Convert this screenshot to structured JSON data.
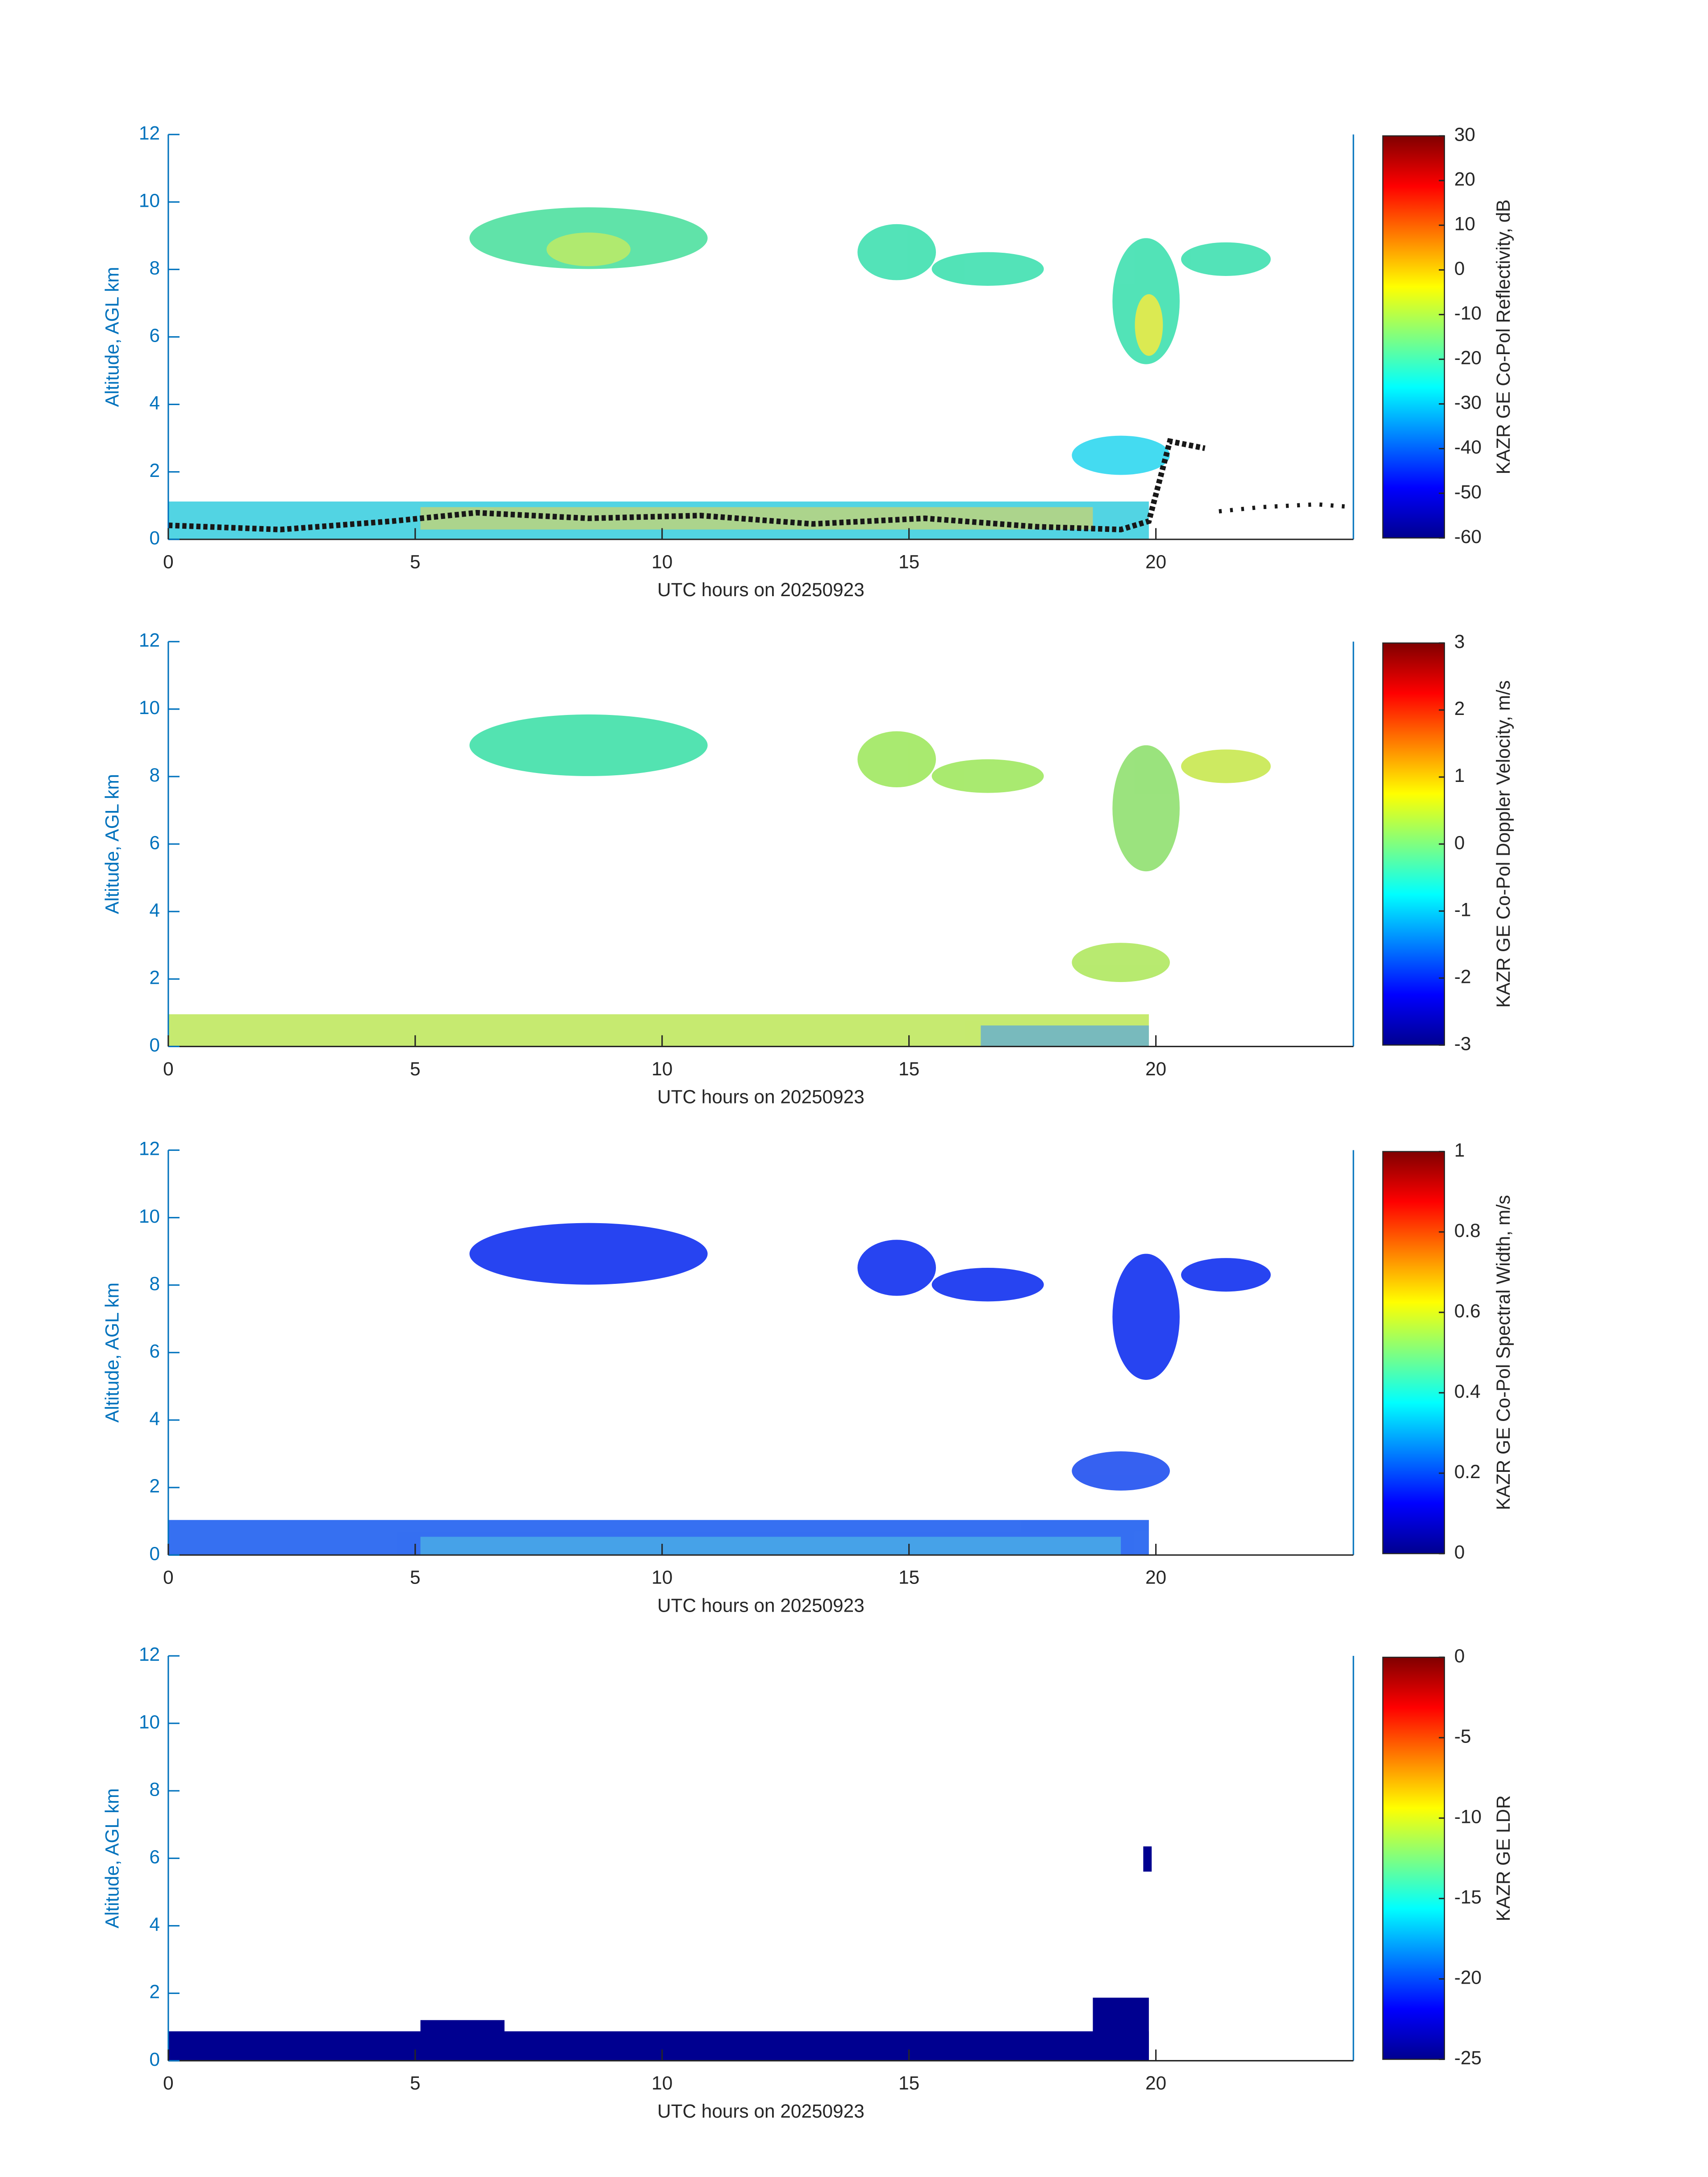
{
  "chart_data": [
    {
      "type": "heatmap",
      "xlabel": "UTC hours on 20250923",
      "ylabel": "Altitude, AGL km",
      "xlim": [
        0,
        24
      ],
      "xticks": [
        0,
        5,
        10,
        15,
        20
      ],
      "ylim": [
        0,
        12
      ],
      "yticks": [
        0,
        2,
        4,
        6,
        8,
        10,
        12
      ],
      "colorbar": {
        "label": "KAZR GE Co-Pol Reflectivity, dB",
        "colormap": "jet",
        "lim": [
          -60,
          30
        ],
        "ticks": [
          30,
          20,
          10,
          0,
          -10,
          -20,
          -30,
          -40,
          -50,
          -60
        ]
      }
    },
    {
      "type": "heatmap",
      "xlabel": "UTC hours on 20250923",
      "ylabel": "Altitude, AGL km",
      "xlim": [
        0,
        24
      ],
      "xticks": [
        0,
        5,
        10,
        15,
        20
      ],
      "ylim": [
        0,
        12
      ],
      "yticks": [
        0,
        2,
        4,
        6,
        8,
        10,
        12
      ],
      "colorbar": {
        "label": "KAZR GE Co-Pol Doppler Velocity, m/s",
        "colormap": "jet",
        "lim": [
          -3,
          3
        ],
        "ticks": [
          3,
          2,
          1,
          0,
          -1,
          -2,
          -3
        ]
      }
    },
    {
      "type": "heatmap",
      "xlabel": "UTC hours on 20250923",
      "ylabel": "Altitude, AGL km",
      "xlim": [
        0,
        24
      ],
      "xticks": [
        0,
        5,
        10,
        15,
        20
      ],
      "ylim": [
        0,
        12
      ],
      "yticks": [
        0,
        2,
        4,
        6,
        8,
        10,
        12
      ],
      "colorbar": {
        "label": "KAZR GE Co-Pol Spectral Width, m/s",
        "colormap": "jet",
        "lim": [
          0,
          1
        ],
        "ticks": [
          1,
          0.8,
          0.6,
          0.4,
          0.2,
          0
        ]
      }
    },
    {
      "type": "heatmap",
      "xlabel": "UTC hours on 20250923",
      "ylabel": "Altitude, AGL km",
      "xlim": [
        0,
        24
      ],
      "xticks": [
        0,
        5,
        10,
        15,
        20
      ],
      "ylim": [
        0,
        12
      ],
      "yticks": [
        0,
        2,
        4,
        6,
        8,
        10,
        12
      ],
      "colorbar": {
        "label": "KAZR GE LDR",
        "colormap": "jet",
        "lim": [
          -25,
          0
        ],
        "ticks": [
          0,
          -5,
          -10,
          -15,
          -20,
          -25
        ]
      }
    }
  ]
}
